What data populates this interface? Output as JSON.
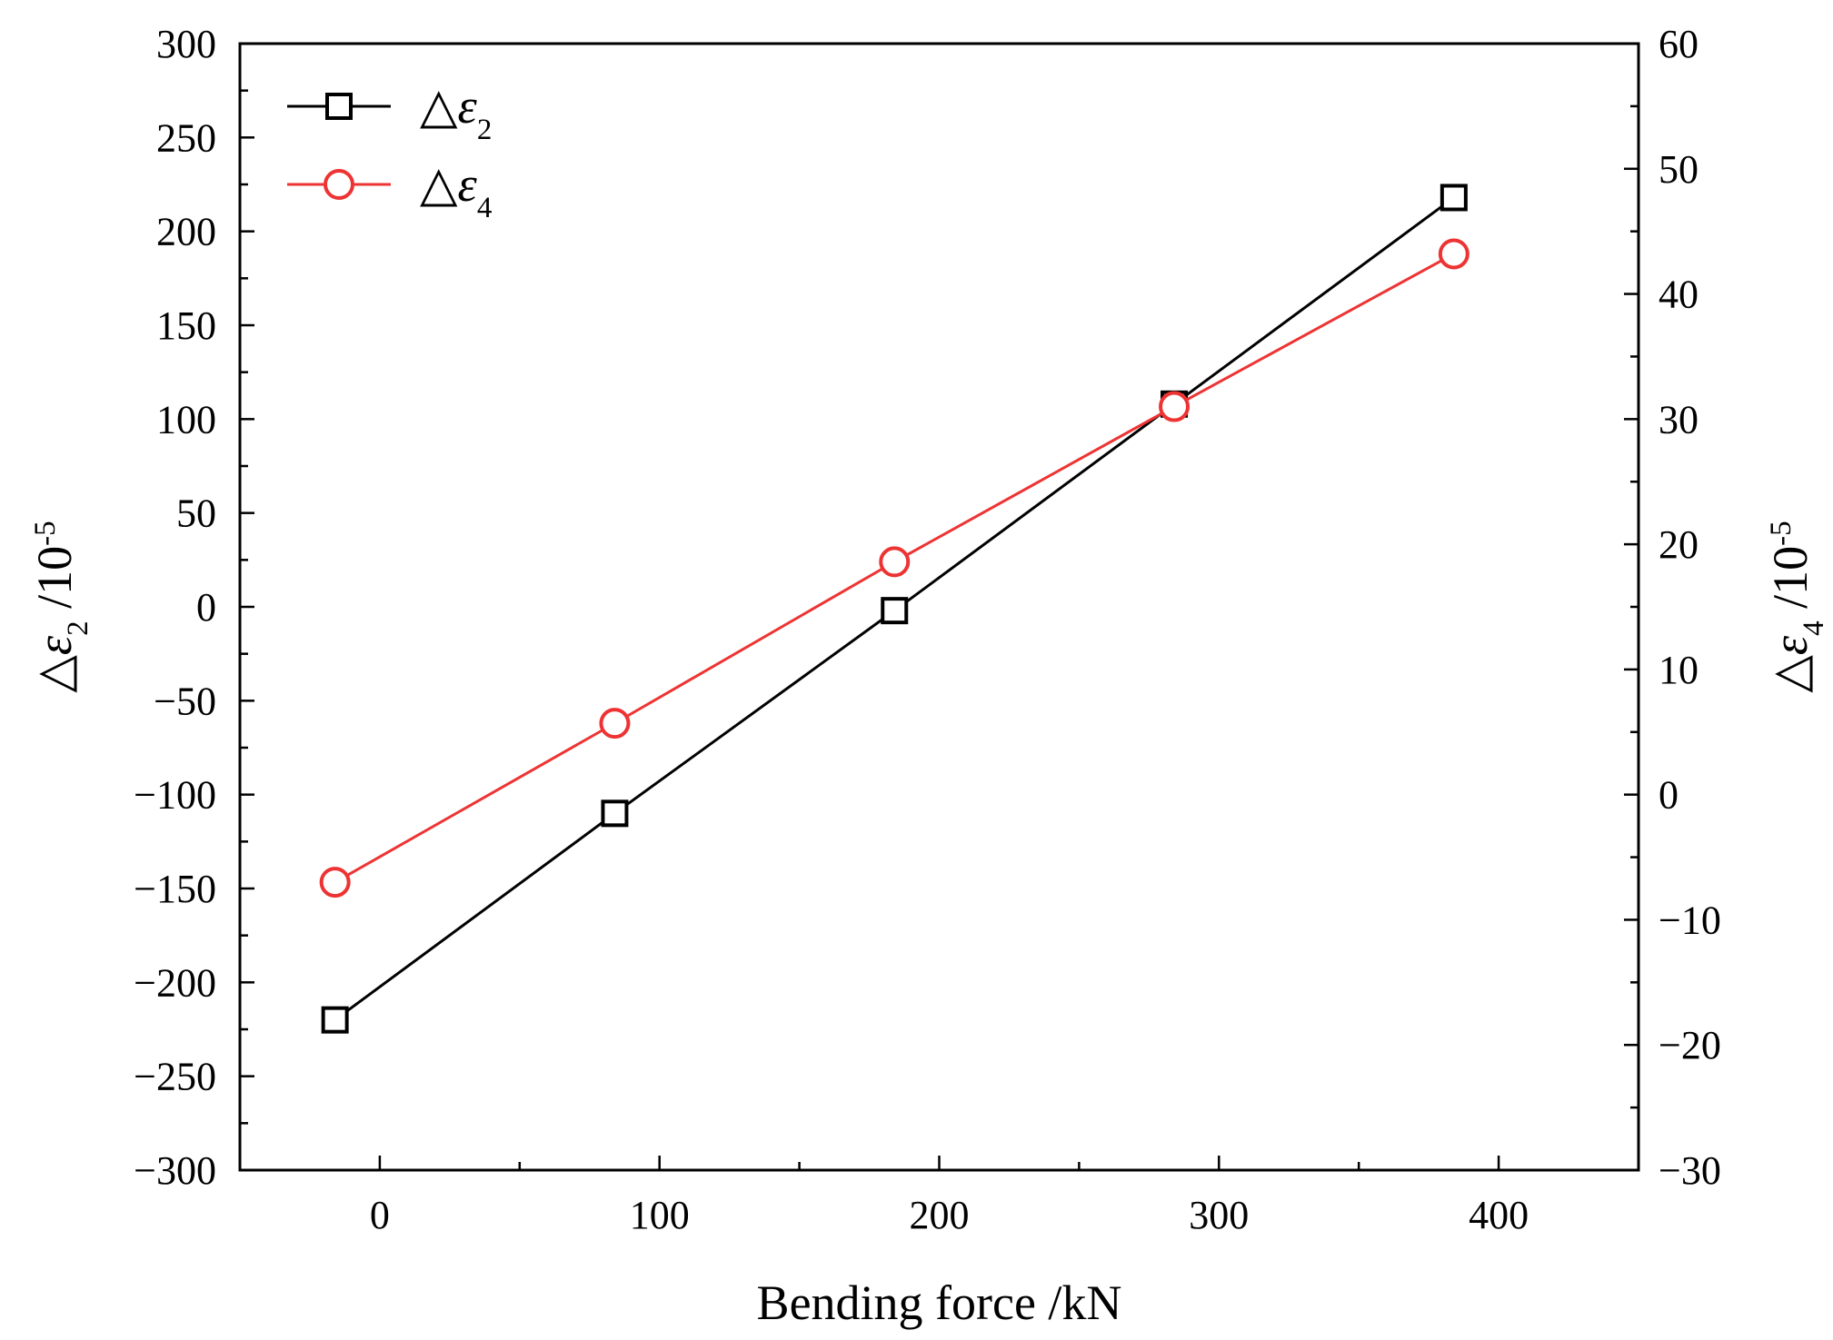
{
  "chart_data": {
    "type": "line",
    "title": "",
    "xlabel": "Bending force /kN",
    "ylabel_left": {
      "prefix": "△",
      "symbol": "ε",
      "sub": "2",
      "suffix": " /10",
      "sup": "-5"
    },
    "ylabel_right": {
      "prefix": "△",
      "symbol": "ε",
      "sub": "4",
      "suffix": " /10",
      "sup": "-5"
    },
    "xlim": [
      -50,
      450
    ],
    "xticks": [
      0,
      100,
      200,
      300,
      400
    ],
    "xtick_labels": [
      "0",
      "100",
      "200",
      "300",
      "400"
    ],
    "ylim_left": [
      -300,
      300
    ],
    "yticks_left": [
      -300,
      -250,
      -200,
      -150,
      -100,
      -50,
      0,
      50,
      100,
      150,
      200,
      250,
      300
    ],
    "ytick_labels_left": [
      "−300",
      "−250",
      "−200",
      "−150",
      "−100",
      "−50",
      "0",
      "50",
      "100",
      "150",
      "200",
      "250",
      "300"
    ],
    "ylim_right": [
      -30,
      60
    ],
    "yticks_right": [
      -30,
      -20,
      -10,
      0,
      10,
      20,
      30,
      40,
      50,
      60
    ],
    "ytick_labels_right": [
      "−30",
      "−20",
      "−10",
      "0",
      "10",
      "20",
      "30",
      "40",
      "50",
      "60"
    ],
    "grid": false,
    "legend_position": "top-left",
    "series": [
      {
        "name": {
          "prefix": "△",
          "symbol": "ε",
          "sub": "2"
        },
        "axis": "left",
        "marker": "square",
        "color": "#000000",
        "x": [
          -16,
          84,
          184,
          284,
          384
        ],
        "y": [
          -220,
          -110,
          -2,
          108,
          218
        ]
      },
      {
        "name": {
          "prefix": "△",
          "symbol": "ε",
          "sub": "4"
        },
        "axis": "right",
        "marker": "circle",
        "color": "#ee3333",
        "x": [
          -16,
          84,
          184,
          284,
          384
        ],
        "y": [
          -7,
          5.7,
          18.6,
          31,
          43.2
        ]
      }
    ]
  }
}
